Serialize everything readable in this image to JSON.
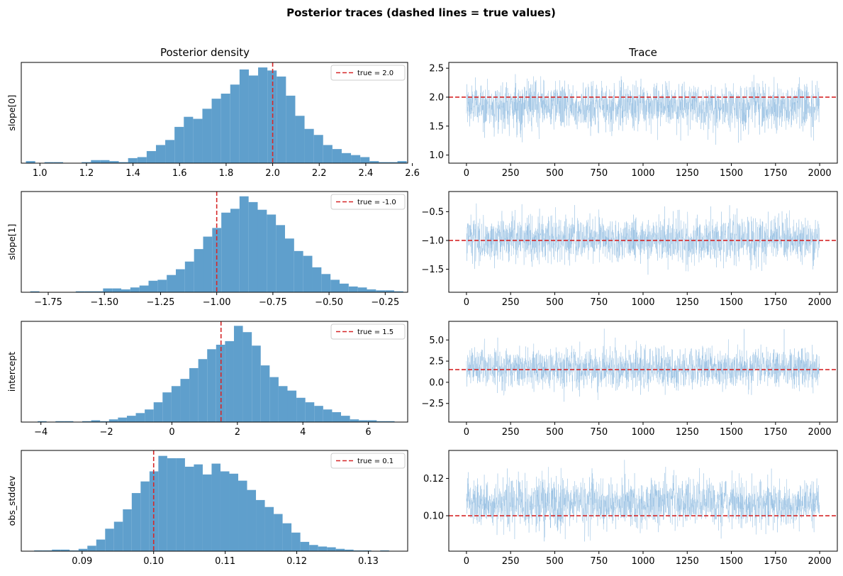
{
  "figure": {
    "suptitle": "Posterior traces (dashed lines = true values)",
    "left_column_title": "Posterior density",
    "right_column_title": "Trace",
    "colors": {
      "hist": "#5f9fcc",
      "trace": "#8fbbe0",
      "true_line": "#d62728"
    }
  },
  "chart_data": [
    {
      "type": "bar",
      "panel": "histogram",
      "ylabel": "slope[0]",
      "true_value": 2.0,
      "legend": "true = 2.0",
      "legend_position": "top-right",
      "xlim": [
        0.92,
        2.58
      ],
      "xticks": [
        1.0,
        1.2,
        1.4,
        1.6,
        1.8,
        2.0,
        2.2,
        2.4,
        2.6
      ],
      "xtick_labels": [
        "1.0",
        "1.2",
        "1.4",
        "1.6",
        "1.8",
        "2.0",
        "2.2",
        "2.4",
        "2.6"
      ],
      "bin_start": 0.94,
      "bin_width": 0.0399,
      "counts": [
        2,
        0,
        1,
        1,
        0,
        0,
        1,
        3,
        3,
        2,
        1,
        5,
        6,
        12,
        18,
        23,
        36,
        46,
        44,
        54,
        64,
        69,
        78,
        93,
        87,
        95,
        92,
        86,
        67,
        47,
        34,
        28,
        18,
        14,
        10,
        8,
        6,
        2,
        1,
        1,
        2
      ],
      "ylim": [
        0,
        100
      ]
    },
    {
      "type": "line",
      "panel": "trace",
      "true_value": 2.0,
      "xlim": [
        -100,
        2100
      ],
      "xticks": [
        0,
        250,
        500,
        750,
        1000,
        1250,
        1500,
        1750,
        2000
      ],
      "xtick_labels": [
        "0",
        "250",
        "500",
        "750",
        "1000",
        "1250",
        "1500",
        "1750",
        "2000"
      ],
      "ylim": [
        0.86,
        2.6
      ],
      "yticks": [
        1.0,
        1.5,
        2.0,
        2.5
      ],
      "ytick_labels": [
        "1.0",
        "1.5",
        "2.0",
        "2.5"
      ],
      "n_samples": 2000,
      "mean": 1.85,
      "sd": 0.2,
      "clip": [
        0.95,
        2.52
      ]
    },
    {
      "type": "bar",
      "panel": "histogram",
      "ylabel": "slope[1]",
      "true_value": -1.0,
      "legend": "true = -1.0",
      "legend_position": "top-right",
      "xlim": [
        -1.87,
        -0.15
      ],
      "xticks": [
        -1.75,
        -1.5,
        -1.25,
        -1.0,
        -0.75,
        -0.5,
        -0.25
      ],
      "xtick_labels": [
        "−1.75",
        "−1.50",
        "−1.25",
        "−1.00",
        "−0.75",
        "−0.50",
        "−0.25"
      ],
      "bin_start": -1.83,
      "bin_width": 0.0405,
      "counts": [
        1,
        0,
        0,
        0,
        0,
        1,
        1,
        1,
        4,
        4,
        3,
        5,
        7,
        12,
        13,
        18,
        24,
        32,
        45,
        58,
        67,
        83,
        87,
        100,
        94,
        86,
        81,
        70,
        56,
        43,
        38,
        26,
        19,
        13,
        9,
        6,
        5,
        3,
        2,
        2,
        1
      ],
      "ylim": [
        0,
        105
      ]
    },
    {
      "type": "line",
      "panel": "trace",
      "true_value": -1.0,
      "xlim": [
        -100,
        2100
      ],
      "xticks": [
        0,
        250,
        500,
        750,
        1000,
        1250,
        1500,
        1750,
        2000
      ],
      "xtick_labels": [
        "0",
        "250",
        "500",
        "750",
        "1000",
        "1250",
        "1500",
        "1750",
        "2000"
      ],
      "ylim": [
        -1.9,
        -0.15
      ],
      "yticks": [
        -1.5,
        -1.0,
        -0.5
      ],
      "ytick_labels": [
        "−1.5",
        "−1.0",
        "−0.5"
      ],
      "n_samples": 2000,
      "mean": -0.98,
      "sd": 0.2,
      "clip": [
        -1.85,
        -0.2
      ]
    },
    {
      "type": "bar",
      "panel": "histogram",
      "ylabel": "intercept",
      "true_value": 1.5,
      "legend": "true = 1.5",
      "legend_position": "top-right",
      "xlim": [
        -4.6,
        7.2
      ],
      "xticks": [
        -4,
        -2,
        0,
        2,
        4,
        6
      ],
      "xtick_labels": [
        "−4",
        "−2",
        "0",
        "2",
        "4",
        "6"
      ],
      "bin_start": -4.1,
      "bin_width": 0.2725,
      "counts": [
        1,
        0,
        1,
        1,
        0,
        1,
        2,
        1,
        3,
        5,
        7,
        10,
        14,
        22,
        33,
        40,
        48,
        60,
        70,
        81,
        86,
        90,
        107,
        100,
        85,
        63,
        50,
        40,
        35,
        27,
        22,
        18,
        14,
        11,
        7,
        3,
        2,
        2,
        1,
        1
      ],
      "ylim": [
        0,
        112
      ]
    },
    {
      "type": "line",
      "panel": "trace",
      "true_value": 1.5,
      "xlim": [
        -100,
        2100
      ],
      "xticks": [
        0,
        250,
        500,
        750,
        1000,
        1250,
        1500,
        1750,
        2000
      ],
      "xtick_labels": [
        "0",
        "250",
        "500",
        "750",
        "1000",
        "1250",
        "1500",
        "1750",
        "2000"
      ],
      "ylim": [
        -4.7,
        7.2
      ],
      "yticks": [
        -2.5,
        0.0,
        2.5,
        5.0
      ],
      "ytick_labels": [
        "−2.5",
        "0.0",
        "2.5",
        "5.0"
      ],
      "n_samples": 2000,
      "mean": 1.6,
      "sd": 1.2,
      "clip": [
        -4.0,
        6.8
      ]
    },
    {
      "type": "bar",
      "panel": "histogram",
      "ylabel": "obs_stddev",
      "true_value": 0.1,
      "legend": "true = 0.1",
      "legend_position": "top-right",
      "xlim": [
        0.0815,
        0.1355
      ],
      "xticks": [
        0.09,
        0.1,
        0.11,
        0.12,
        0.13
      ],
      "xtick_labels": [
        "0.09",
        "0.10",
        "0.11",
        "0.12",
        "0.13"
      ],
      "bin_start": 0.0833,
      "bin_width": 0.00124,
      "counts": [
        1,
        1,
        2,
        2,
        1,
        3,
        7,
        15,
        29,
        38,
        54,
        75,
        90,
        103,
        123,
        120,
        120,
        109,
        112,
        99,
        113,
        103,
        100,
        91,
        79,
        66,
        57,
        48,
        36,
        24,
        12,
        8,
        6,
        5,
        3,
        2,
        1,
        1,
        0,
        1
      ],
      "ylim": [
        0,
        130
      ]
    },
    {
      "type": "line",
      "panel": "trace",
      "true_value": 0.1,
      "xlim": [
        -100,
        2100
      ],
      "xticks": [
        0,
        250,
        500,
        750,
        1000,
        1250,
        1500,
        1750,
        2000
      ],
      "xtick_labels": [
        "0",
        "250",
        "500",
        "750",
        "1000",
        "1250",
        "1500",
        "1750",
        "2000"
      ],
      "ylim": [
        0.081,
        0.135
      ],
      "yticks": [
        0.1,
        0.12
      ],
      "ytick_labels": [
        "0.10",
        "0.12"
      ],
      "n_samples": 2000,
      "mean": 0.1065,
      "sd": 0.0065,
      "clip": [
        0.084,
        0.133
      ]
    }
  ]
}
